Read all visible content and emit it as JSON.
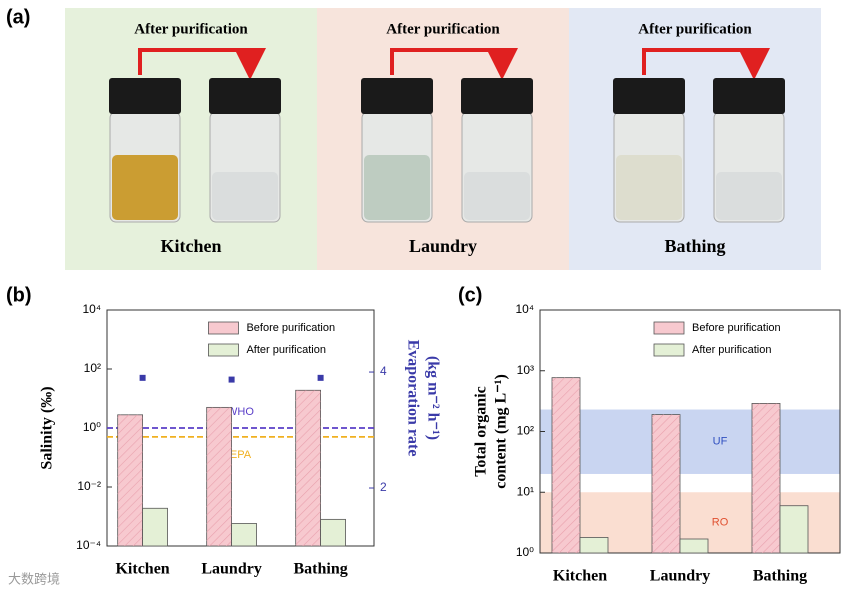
{
  "panel_a": {
    "panel_label": "(a)",
    "panels": [
      {
        "arrow_label": "After purification",
        "name": "Kitchen",
        "background": "#e6f1dc",
        "liquid_color": "#c8951e"
      },
      {
        "arrow_label": "After purification",
        "name": "Laundry",
        "background": "#f7e4dc",
        "liquid_color": "#b9c9bc"
      },
      {
        "arrow_label": "After purification",
        "name": "Bathing",
        "background": "#e2e8f4",
        "liquid_color": "#dcdccb"
      }
    ]
  },
  "watermark": "大数跨境",
  "chart_data": [
    {
      "type": "bar",
      "panel_label": "(b)",
      "ylabel": [
        "Salinity (‰)"
      ],
      "y2label": [
        "Evaporation rate",
        "(kg m⁻² h⁻¹)"
      ],
      "categories": [
        "Kitchen",
        "Laundry",
        "Bathing"
      ],
      "log_y": true,
      "ylim": [
        0.0001,
        10000
      ],
      "yticks": [
        {
          "value": 0.0001,
          "label": "10⁻⁴"
        },
        {
          "value": 0.01,
          "label": "10⁻²"
        },
        {
          "value": 1,
          "label": "10⁰"
        },
        {
          "value": 100,
          "label": "10²"
        },
        {
          "value": 10000,
          "label": "10⁴"
        }
      ],
      "y2lim": [
        1,
        5.07
      ],
      "y2ticks": [
        2,
        4
      ],
      "y2color": "#3a3aa8",
      "legend": "top-right",
      "series": [
        {
          "name": "Before purification",
          "color": "#f7c9cf",
          "values": [
            2.8,
            5,
            19
          ]
        },
        {
          "name": "After purification",
          "color": "#e4f0d6",
          "values": [
            0.0019,
            0.00058,
            0.0008
          ]
        },
        {
          "axis": "y2",
          "color": "#3a3aa8",
          "values": [
            3.9,
            3.87,
            3.9
          ]
        }
      ],
      "hlines": [
        {
          "label": "WHO",
          "value": 1,
          "color": "#5a3ec8"
        },
        {
          "label": "EPA",
          "value": 0.5,
          "color": "#f0b020"
        }
      ]
    },
    {
      "type": "bar",
      "panel_label": "(c)",
      "ylabel": [
        "Total organic",
        "content (mg L⁻¹)"
      ],
      "categories": [
        "Kitchen",
        "Laundry",
        "Bathing"
      ],
      "log_y": true,
      "ylim": [
        1,
        10000
      ],
      "yticks": [
        {
          "value": 1,
          "label": "10⁰"
        },
        {
          "value": 10,
          "label": "10¹"
        },
        {
          "value": 100,
          "label": "10²"
        },
        {
          "value": 1000,
          "label": "10³"
        },
        {
          "value": 10000,
          "label": "10⁴"
        }
      ],
      "legend": "top-right",
      "series": [
        {
          "name": "Before purification",
          "color": "#f7c9cf",
          "values": [
            770,
            190,
            290
          ]
        },
        {
          "name": "After purification",
          "color": "#e4f0d6",
          "values": [
            1.8,
            1.7,
            6
          ]
        }
      ],
      "bands": [
        {
          "label": "UF",
          "from": 20,
          "to": 230,
          "color": "#bccbee",
          "label_color": "#3050c0"
        },
        {
          "label": "RO",
          "from": 1,
          "to": 10,
          "color": "#f9d6c6",
          "label_color": "#e05030"
        }
      ]
    }
  ]
}
